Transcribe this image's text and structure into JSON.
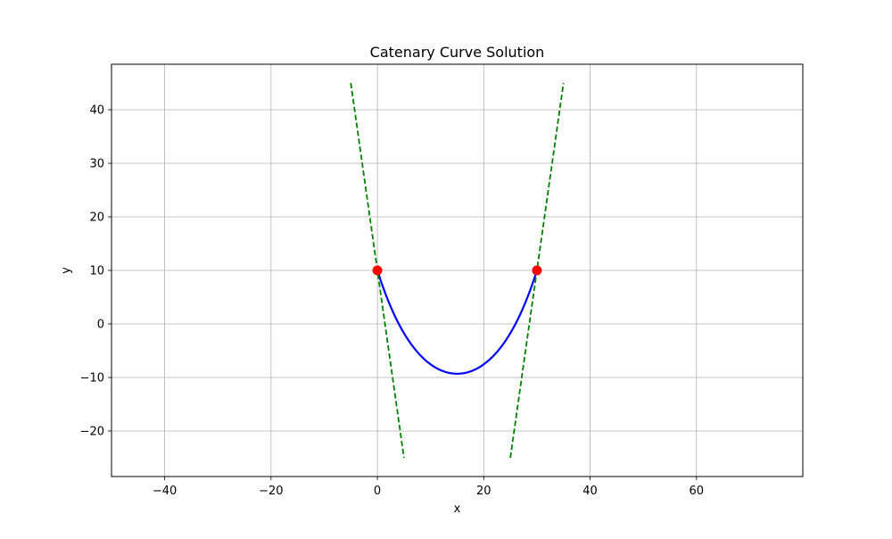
{
  "chart_data": {
    "type": "line",
    "title": "Catenary Curve Solution",
    "xlabel": "x",
    "ylabel": "y",
    "xlim": [
      -50,
      80
    ],
    "ylim": [
      -28.5,
      48.5
    ],
    "x_ticks": [
      -40,
      -20,
      0,
      20,
      40,
      60
    ],
    "x_tick_labels": [
      "−40",
      "−20",
      "0",
      "20",
      "40",
      "60"
    ],
    "y_ticks": [
      -20,
      -10,
      0,
      10,
      20,
      30,
      40
    ],
    "y_tick_labels": [
      "−20",
      "−10",
      "0",
      "10",
      "20",
      "30",
      "40"
    ],
    "grid": true,
    "legend": "none",
    "series": [
      {
        "kind": "curve",
        "color": "#0000ff",
        "style": "solid",
        "x": [
          0,
          2,
          4,
          6,
          8,
          10,
          12,
          14,
          15,
          16,
          18,
          20,
          22,
          24,
          26,
          28,
          30
        ],
        "y": [
          10,
          4.0,
          -0.4,
          -3.9,
          -6.4,
          -8.1,
          -9.0,
          -9.3,
          -9.3,
          -9.3,
          -9.0,
          -8.1,
          -6.4,
          -3.9,
          -0.4,
          4.0,
          10
        ]
      },
      {
        "kind": "tangent-left",
        "color": "#008000",
        "style": "dashed",
        "x": [
          -5,
          5
        ],
        "y": [
          45,
          -25
        ]
      },
      {
        "kind": "tangent-right",
        "color": "#008000",
        "style": "dashed",
        "x": [
          25,
          35
        ],
        "y": [
          -25,
          45
        ]
      }
    ],
    "points": {
      "color": "#ff0000",
      "x": [
        0,
        30
      ],
      "y": [
        10,
        10
      ]
    }
  }
}
